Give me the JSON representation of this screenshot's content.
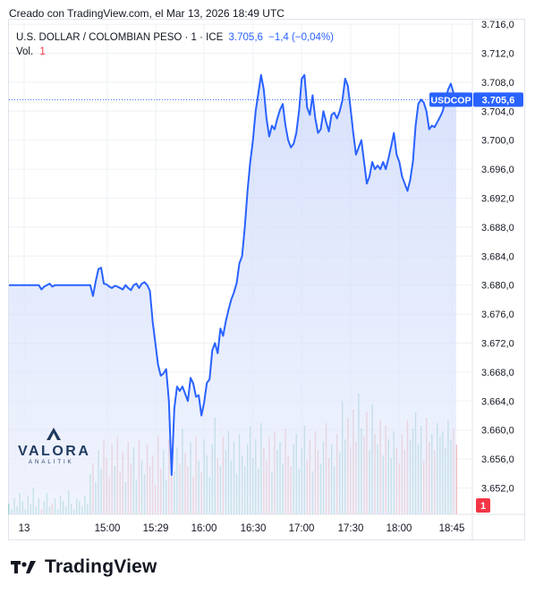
{
  "header": {
    "text": "Creado con TradingView.com, el Mar 13, 2026 18:49 UTC"
  },
  "legend": {
    "symbol": "U.S. DOLLAR / COLOMBIAN PESO · 1 · ICE",
    "last": "3.705,6",
    "change": "−1,4 (−0,04%)",
    "vol_label": "Vol.",
    "vol_value": "1"
  },
  "price_label": {
    "ticker": "USDCOP",
    "value": "3.705,6"
  },
  "volume_badge": "1",
  "watermark": {
    "name": "VALORA",
    "sub": "ANALITIK"
  },
  "footer": {
    "brand": "TradingView"
  },
  "colors": {
    "line": "#2962ff",
    "area_top": "#c9d6fb",
    "vol_up": "#7fc8c0",
    "vol_down": "#f0a4a4",
    "grid": "#eef0f4"
  },
  "chart_data": {
    "type": "area",
    "y_ticks": [
      "3.652,0",
      "3.656,0",
      "3.660,0",
      "3.664,0",
      "3.668,0",
      "3.672,0",
      "3.676,0",
      "3.680,0",
      "3.684,0",
      "3.688,0",
      "3.692,0",
      "3.696,0",
      "3.700,0",
      "3.704,0",
      "3.708,0",
      "3.712,0",
      "3.716,0"
    ],
    "x_ticks": [
      "13",
      "15:00",
      "15:29",
      "16:00",
      "16:30",
      "17:00",
      "17:30",
      "18:00",
      "18:45"
    ],
    "ylim": [
      3650.0,
      3716.0
    ],
    "grid": true,
    "price_series": [
      3680.0,
      3680.0,
      3680.0,
      3680.0,
      3680.0,
      3680.0,
      3680.0,
      3680.0,
      3680.0,
      3680.0,
      3680.0,
      3680.0,
      3679.4,
      3679.8,
      3680.0,
      3680.2,
      3679.8,
      3680.0,
      3680.0,
      3680.0,
      3680.0,
      3680.0,
      3680.0,
      3680.0,
      3680.0,
      3680.0,
      3680.0,
      3680.0,
      3680.0,
      3680.0,
      3680.0,
      3678.5,
      3680.5,
      3682.2,
      3682.4,
      3680.2,
      3680.1,
      3679.8,
      3679.6,
      3679.9,
      3679.8,
      3679.6,
      3679.4,
      3680.0,
      3679.6,
      3679.3,
      3680.0,
      3680.2,
      3679.6,
      3680.2,
      3680.4,
      3680.0,
      3679.2,
      3675.0,
      3672.0,
      3669.0,
      3667.5,
      3667.8,
      3668.4,
      3664.0,
      3653.8,
      3663.0,
      3666.0,
      3665.4,
      3666.0,
      3665.0,
      3664.0,
      3667.2,
      3666.4,
      3664.6,
      3664.8,
      3662.0,
      3663.8,
      3666.5,
      3667.0,
      3671.0,
      3672.0,
      3670.6,
      3674.0,
      3673.0,
      3675.0,
      3676.6,
      3678.0,
      3679.0,
      3680.3,
      3683.0,
      3684.0,
      3688.0,
      3693.0,
      3697.0,
      3700.0,
      3704.0,
      3706.5,
      3709.0,
      3707.0,
      3703.0,
      3700.5,
      3702.0,
      3701.5,
      3703.0,
      3704.2,
      3705.0,
      3702.0,
      3700.0,
      3699.0,
      3699.5,
      3701.0,
      3704.0,
      3708.5,
      3709.0,
      3704.5,
      3703.5,
      3706.2,
      3703.0,
      3701.0,
      3701.5,
      3704.0,
      3702.5,
      3701.2,
      3703.5,
      3703.8,
      3703.0,
      3704.0,
      3705.5,
      3708.5,
      3707.5,
      3704.4,
      3701.0,
      3698.0,
      3699.0,
      3700.0,
      3697.0,
      3694.0,
      3695.0,
      3697.0,
      3696.0,
      3696.5,
      3696.0,
      3697.0,
      3696.0,
      3697.5,
      3699.2,
      3701.0,
      3698.0,
      3697.0,
      3695.0,
      3694.0,
      3693.0,
      3694.5,
      3697.0,
      3702.0,
      3705.0,
      3705.6,
      3705.2,
      3704.0,
      3701.5,
      3702.0,
      3701.8,
      3702.5,
      3703.2,
      3704.0,
      3705.5,
      3707.0,
      3707.8,
      3706.5,
      3705.6
    ],
    "volume_series": [
      0.4,
      0.2,
      0.6,
      0.3,
      0.8,
      0.5,
      0.2,
      0.7,
      0.4,
      1.0,
      0.3,
      0.6,
      0.2,
      0.5,
      0.8,
      0.3,
      0.4,
      0.6,
      0.2,
      0.7,
      0.5,
      0.3,
      0.9,
      0.4,
      0.2,
      0.6,
      0.5,
      0.3,
      0.7,
      0.4,
      1.5,
      1.9,
      1.2,
      2.4,
      1.7,
      2.8,
      2.1,
      1.4,
      2.6,
      1.8,
      2.9,
      1.6,
      2.3,
      1.2,
      2.7,
      1.9,
      2.5,
      1.3,
      2.8,
      2.0,
      1.5,
      2.6,
      1.8,
      2.2,
      1.1,
      2.9,
      1.7,
      2.4,
      1.3,
      2.8,
      2.1,
      1.6,
      2.5,
      1.9,
      3.2,
      2.3,
      1.8,
      2.7,
      1.4,
      2.9,
      2.0,
      1.6,
      2.8,
      2.2,
      1.4,
      2.6,
      3.6,
      2.1,
      1.8,
      2.9,
      2.4,
      3.1,
      2.0,
      2.7,
      1.5,
      3.0,
      2.2,
      1.8,
      2.6,
      3.3,
      2.1,
      2.8,
      1.7,
      3.4,
      2.5,
      2.0,
      2.9,
      1.6,
      3.1,
      2.4,
      2.7,
      1.9,
      3.2,
      2.2,
      1.8,
      2.6,
      3.0,
      1.7,
      2.5,
      3.3,
      2.0,
      2.8,
      1.6,
      3.1,
      2.4,
      1.9,
      2.7,
      3.4,
      2.1,
      2.6,
      1.8,
      3.0,
      2.3,
      4.2,
      2.8,
      3.6,
      2.5,
      3.9,
      2.7,
      4.5,
      3.2,
      2.9,
      3.8,
      2.4,
      4.1,
      3.0,
      2.6,
      3.5,
      2.2,
      3.3,
      2.8,
      2.1,
      3.1,
      2.5,
      1.9,
      3.0,
      2.4,
      3.5,
      2.8,
      3.2,
      3.8,
      2.6,
      3.3,
      2.0,
      3.6,
      2.7,
      3.0,
      2.4,
      3.4,
      2.9,
      3.1,
      2.5,
      3.5,
      2.8,
      3.2,
      2.6
    ]
  }
}
